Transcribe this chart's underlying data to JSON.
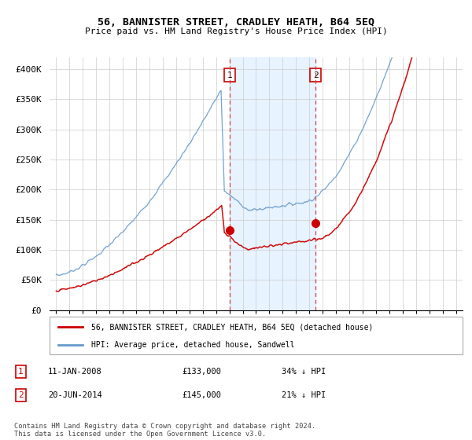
{
  "title": "56, BANNISTER STREET, CRADLEY HEATH, B64 5EQ",
  "subtitle": "Price paid vs. HM Land Registry's House Price Index (HPI)",
  "legend_entry1": "56, BANNISTER STREET, CRADLEY HEATH, B64 5EQ (detached house)",
  "legend_entry2": "HPI: Average price, detached house, Sandwell",
  "annotation1_label": "1",
  "annotation1_date": "11-JAN-2008",
  "annotation1_price": "£133,000",
  "annotation1_hpi": "34% ↓ HPI",
  "annotation2_label": "2",
  "annotation2_date": "20-JUN-2014",
  "annotation2_price": "£145,000",
  "annotation2_hpi": "21% ↓ HPI",
  "footer": "Contains HM Land Registry data © Crown copyright and database right 2024.\nThis data is licensed under the Open Government Licence v3.0.",
  "sale1_year": 2008.03,
  "sale1_price": 133000,
  "sale2_year": 2014.47,
  "sale2_price": 145000,
  "red_color": "#cc0000",
  "blue_color": "#6699cc",
  "vline_color": "#cc4444",
  "shade_color": "#ddeeff",
  "ylim": [
    0,
    420000
  ],
  "xlim_start": 1994.5,
  "xlim_end": 2025.5,
  "yticks": [
    0,
    50000,
    100000,
    150000,
    200000,
    250000,
    300000,
    350000,
    400000
  ],
  "ytick_labels": [
    "£0",
    "£50K",
    "£100K",
    "£150K",
    "£200K",
    "£250K",
    "£300K",
    "£350K",
    "£400K"
  ],
  "xticks": [
    1995,
    1996,
    1997,
    1998,
    1999,
    2000,
    2001,
    2002,
    2003,
    2004,
    2005,
    2006,
    2007,
    2008,
    2009,
    2010,
    2011,
    2012,
    2013,
    2014,
    2015,
    2016,
    2017,
    2018,
    2019,
    2020,
    2021,
    2022,
    2023,
    2024,
    2025
  ]
}
